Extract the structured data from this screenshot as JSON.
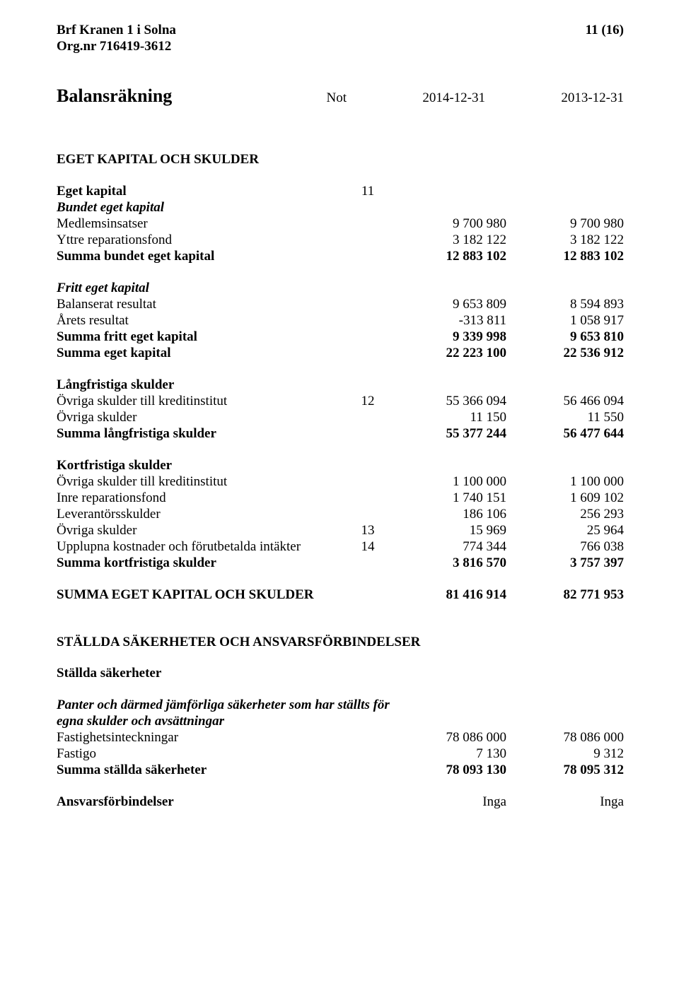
{
  "header": {
    "org_name": "Brf Kranen 1 i Solna",
    "org_nr": "Org.nr 716419-3612",
    "page_num": "11 (16)"
  },
  "title_row": {
    "title": "Balansräkning",
    "not_label": "Not",
    "col1": "2014-12-31",
    "col2": "2013-12-31"
  },
  "s1_heading": "EGET KAPITAL OCH SKULDER",
  "eget_kapital": {
    "header": {
      "label": "Eget kapital",
      "note": "11"
    },
    "sub1": {
      "label": "Bundet eget kapital"
    },
    "r1": {
      "label": "Medlemsinsatser",
      "c1": "9 700 980",
      "c2": "9 700 980"
    },
    "r2": {
      "label": "Yttre reparationsfond",
      "c1": "3 182 122",
      "c2": "3 182 122"
    },
    "sum1": {
      "label": "Summa bundet eget kapital",
      "c1": "12 883 102",
      "c2": "12 883 102"
    },
    "sub2": {
      "label": "Fritt eget kapital"
    },
    "r3": {
      "label": "Balanserat resultat",
      "c1": "9 653 809",
      "c2": "8 594 893"
    },
    "r4": {
      "label": "Årets resultat",
      "c1": "-313 811",
      "c2": "1 058 917"
    },
    "sum2": {
      "label": "Summa fritt eget kapital",
      "c1": "9 339 998",
      "c2": "9 653 810"
    },
    "sum3": {
      "label": "Summa eget kapital",
      "c1": "22 223 100",
      "c2": "22 536 912"
    }
  },
  "lang": {
    "header": {
      "label": "Långfristiga skulder"
    },
    "r1": {
      "label": "Övriga skulder till kreditinstitut",
      "note": "12",
      "c1": "55 366 094",
      "c2": "56 466 094"
    },
    "r2": {
      "label": "Övriga skulder",
      "c1": "11 150",
      "c2": "11 550"
    },
    "sum": {
      "label": "Summa långfristiga skulder",
      "c1": "55 377 244",
      "c2": "56 477 644"
    }
  },
  "kort": {
    "header": {
      "label": "Kortfristiga skulder"
    },
    "r1": {
      "label": "Övriga skulder till kreditinstitut",
      "c1": "1 100 000",
      "c2": "1 100 000"
    },
    "r2": {
      "label": "Inre reparationsfond",
      "c1": "1 740 151",
      "c2": "1 609 102"
    },
    "r3": {
      "label": "Leverantörsskulder",
      "c1": "186 106",
      "c2": "256 293"
    },
    "r4": {
      "label": "Övriga skulder",
      "note": "13",
      "c1": "15 969",
      "c2": "25 964"
    },
    "r5": {
      "label": "Upplupna kostnader och förutbetalda intäkter",
      "note": "14",
      "c1": "774 344",
      "c2": "766 038"
    },
    "sum": {
      "label": "Summa kortfristiga skulder",
      "c1": "3 816 570",
      "c2": "3 757 397"
    }
  },
  "total": {
    "label": "SUMMA EGET KAPITAL OCH SKULDER",
    "c1": "81 416 914",
    "c2": "82 771 953"
  },
  "stallda": {
    "heading": "STÄLLDA SÄKERHETER OCH ANSVARSFÖRBINDELSER",
    "sub_heading": "Ställda säkerheter",
    "panter1": "Panter och därmed jämförliga säkerheter som har ställts för",
    "panter2": "egna skulder och avsättningar",
    "r1": {
      "label": "Fastighetsinteckningar",
      "c1": "78 086 000",
      "c2": "78 086 000"
    },
    "r2": {
      "label": "Fastigo",
      "c1": "7 130",
      "c2": "9 312"
    },
    "sum": {
      "label": "Summa ställda säkerheter",
      "c1": "78 093 130",
      "c2": "78 095 312"
    }
  },
  "ansvar": {
    "label": "Ansvarsförbindelser",
    "c1": "Inga",
    "c2": "Inga"
  }
}
